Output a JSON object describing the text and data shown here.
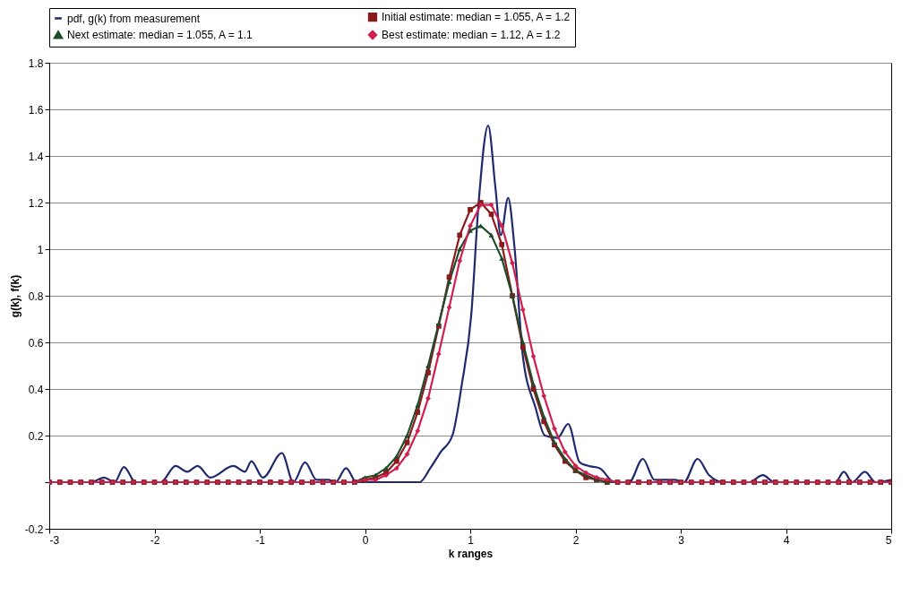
{
  "chart_data": {
    "type": "line",
    "xlabel": "k ranges",
    "ylabel": "g(k), f(k)",
    "x": [
      -3,
      -2.9,
      -2.8,
      -2.7,
      -2.6,
      -2.5,
      -2.4,
      -2.3,
      -2.2,
      -2.1,
      -2,
      -1.9,
      -1.8,
      -1.7,
      -1.6,
      -1.5,
      -1.4,
      -1.3,
      -1.2,
      -1.1,
      -1,
      -0.9,
      -0.8,
      -0.7,
      -0.6,
      -0.5,
      -0.4,
      -0.3,
      -0.2,
      -0.1,
      0,
      0.1,
      0.2,
      0.3,
      0.4,
      0.5,
      0.6,
      0.7,
      0.8,
      0.9,
      1,
      1.1,
      1.2,
      1.3,
      1.4,
      1.5,
      1.6,
      1.7,
      1.8,
      1.9,
      2,
      2.1,
      2.2,
      2.3,
      2.4,
      2.5,
      2.6,
      2.7,
      2.8,
      2.9,
      3,
      3.1,
      3.2,
      3.3,
      3.4,
      3.5,
      3.6,
      3.7,
      3.8,
      3.9,
      4,
      4.1,
      4.2,
      4.3,
      4.4,
      4.5,
      4.6,
      4.7,
      4.8,
      4.9,
      5
    ],
    "series": [
      {
        "name": "pdf, g(k) from measurement",
        "color": "#1f2a6e",
        "marker": "none",
        "x": [
          -3,
          -2.6,
          -2.48,
          -2.38,
          -2.29,
          -2.18,
          -1.94,
          -1.8,
          -1.69,
          -1.59,
          -1.47,
          -1.25,
          -1.14,
          -1.08,
          -0.97,
          -0.79,
          -0.68,
          -0.57,
          -0.46,
          -0.35,
          -0.28,
          -0.18,
          -0.08,
          0,
          0.3,
          0.52,
          0.62,
          0.72,
          0.83,
          0.92,
          1.01,
          1.08,
          1.17,
          1.24,
          1.29,
          1.36,
          1.42,
          1.5,
          1.62,
          1.71,
          1.83,
          1.93,
          2.04,
          2.12,
          2.23,
          2.37,
          2.51,
          2.64,
          2.75,
          2.94,
          3.03,
          3.16,
          3.27,
          3.41,
          3.65,
          3.78,
          3.89,
          4.2,
          4.47,
          4.55,
          4.63,
          4.75,
          4.85,
          5
        ],
        "values": [
          0,
          0,
          0.02,
          0,
          0.065,
          0,
          0,
          0.07,
          0.045,
          0.07,
          0.02,
          0.07,
          0.045,
          0.09,
          0.02,
          0.125,
          0,
          0.085,
          0.01,
          0.01,
          0,
          0.06,
          0,
          0,
          0,
          0,
          0.06,
          0.13,
          0.2,
          0.42,
          0.72,
          1.2,
          1.53,
          1.26,
          1.06,
          1.22,
          1.01,
          0.54,
          0.32,
          0.2,
          0.19,
          0.25,
          0.085,
          0.07,
          0.06,
          0,
          0,
          0.1,
          0.01,
          0.01,
          0,
          0.1,
          0.03,
          0,
          0,
          0.03,
          0,
          0,
          0,
          0.045,
          0,
          0.045,
          0,
          0.01
        ]
      },
      {
        "name": "Initial estimate: median = 1.055, A = 1.2",
        "color": "#8b1a1a",
        "marker": "square",
        "values": [
          0,
          0,
          0,
          0,
          0,
          0,
          0,
          0,
          0,
          0,
          0,
          0,
          0,
          0,
          0,
          0,
          0,
          0,
          0,
          0,
          0,
          0,
          0,
          0,
          0,
          0,
          0,
          0,
          0,
          0,
          0.01,
          0.02,
          0.04,
          0.09,
          0.17,
          0.3,
          0.47,
          0.67,
          0.88,
          1.06,
          1.17,
          1.2,
          1.15,
          1.02,
          0.8,
          0.58,
          0.4,
          0.26,
          0.16,
          0.09,
          0.05,
          0.02,
          0.01,
          0,
          0,
          0,
          0,
          0,
          0,
          0,
          0,
          0,
          0,
          0,
          0,
          0,
          0,
          0,
          0,
          0,
          0,
          0,
          0,
          0,
          0,
          0,
          0,
          0,
          0,
          0,
          0
        ]
      },
      {
        "name": "Next estimate: median = 1.055,  A = 1.1",
        "color": "#1e4d2b",
        "marker": "triangle",
        "values": [
          0,
          0,
          0,
          0,
          0,
          0,
          0,
          0,
          0,
          0,
          0,
          0,
          0,
          0,
          0,
          0,
          0,
          0,
          0,
          0,
          0,
          0,
          0,
          0,
          0,
          0,
          0,
          0,
          0,
          0,
          0.02,
          0.03,
          0.06,
          0.11,
          0.2,
          0.33,
          0.5,
          0.68,
          0.86,
          1.0,
          1.08,
          1.1,
          1.06,
          0.96,
          0.8,
          0.6,
          0.42,
          0.28,
          0.17,
          0.1,
          0.05,
          0.03,
          0.01,
          0,
          0,
          0,
          0,
          0,
          0,
          0,
          0,
          0,
          0,
          0,
          0,
          0,
          0,
          0,
          0,
          0,
          0,
          0,
          0,
          0,
          0,
          0,
          0,
          0,
          0,
          0,
          0
        ]
      },
      {
        "name": "Best estimate: median = 1.12,  A = 1.2",
        "color": "#d0204f",
        "marker": "diamond",
        "values": [
          0,
          0,
          0,
          0,
          0,
          0,
          0,
          0,
          0,
          0,
          0,
          0,
          0,
          0,
          0,
          0,
          0,
          0,
          0,
          0,
          0,
          0,
          0,
          0,
          0,
          0,
          0,
          0,
          0,
          0,
          0.01,
          0.01,
          0.03,
          0.06,
          0.12,
          0.22,
          0.36,
          0.55,
          0.75,
          0.95,
          1.1,
          1.19,
          1.19,
          1.1,
          0.94,
          0.74,
          0.54,
          0.37,
          0.23,
          0.13,
          0.07,
          0.04,
          0.02,
          0.01,
          0,
          0,
          0,
          0,
          0,
          0,
          0,
          0,
          0,
          0,
          0,
          0,
          0,
          0,
          0,
          0,
          0,
          0,
          0,
          0,
          0,
          0,
          0,
          0,
          0,
          0,
          0
        ]
      }
    ],
    "xlim": [
      -3,
      5
    ],
    "xticks": [
      -3,
      -2,
      -1,
      0,
      1,
      2,
      3,
      4,
      5
    ],
    "ylim": [
      -0.2,
      1.8
    ],
    "yticks": [
      -0.2,
      {
        "value": 0,
        "label": null
      },
      0.2,
      0.4,
      0.6,
      0.8,
      1,
      1.2,
      1.4,
      1.6,
      1.8
    ],
    "grid": "y",
    "legend": "top"
  }
}
